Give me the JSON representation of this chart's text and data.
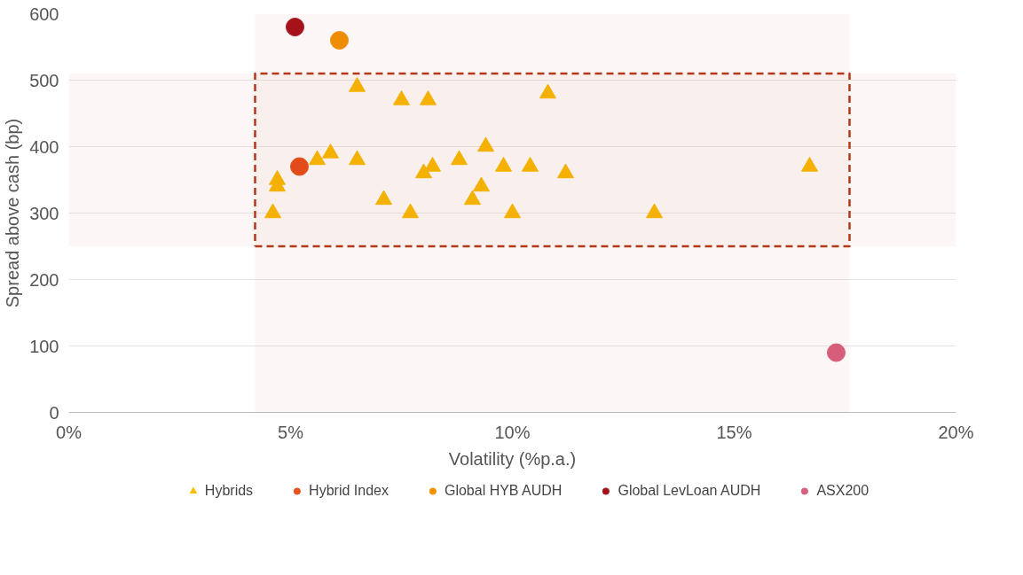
{
  "chart_data": {
    "type": "scatter",
    "xlabel": "Volatility (%p.a.)",
    "ylabel": "Spread above cash (bp)",
    "xlim": [
      0,
      20
    ],
    "xticks": [
      {
        "value": 0,
        "label": "0%"
      },
      {
        "value": 5,
        "label": "5%"
      },
      {
        "value": 10,
        "label": "10%"
      },
      {
        "value": 15,
        "label": "15%"
      },
      {
        "value": 20,
        "label": "20%"
      }
    ],
    "ylim": [
      0,
      600
    ],
    "yticks": [
      0,
      100,
      200,
      300,
      400,
      500,
      600
    ],
    "grid": "y",
    "legend": "bottom",
    "bands": [
      {
        "axis": "x",
        "from": 4.2,
        "to": 17.6,
        "color": "#b5391a"
      },
      {
        "axis": "y",
        "from": 250,
        "to": 510,
        "color": "#b5391a"
      }
    ],
    "series": [
      {
        "name": "Hybrids",
        "color": "#fbbd00",
        "marker": "triangle",
        "x": [
          4.6,
          4.7,
          4.7,
          5.6,
          5.9,
          6.5,
          6.5,
          7.1,
          7.5,
          7.7,
          8.1,
          8.0,
          8.2,
          8.8,
          9.1,
          9.3,
          9.4,
          9.8,
          10.0,
          10.4,
          10.8,
          11.2,
          13.2,
          16.7
        ],
        "values": [
          300,
          340,
          350,
          380,
          390,
          490,
          380,
          320,
          470,
          300,
          470,
          360,
          370,
          380,
          320,
          340,
          400,
          370,
          300,
          370,
          480,
          360,
          300,
          370
        ]
      },
      {
        "name": "Hybrid Index",
        "color": "#e8501c",
        "marker": "circle",
        "x": [
          5.2
        ],
        "values": [
          370
        ]
      },
      {
        "name": "Global HYB AUDH",
        "color": "#f29100",
        "marker": "circle",
        "x": [
          6.1
        ],
        "values": [
          560
        ]
      },
      {
        "name": "Global LevLoan AUDH",
        "color": "#a5111b",
        "marker": "circle",
        "x": [
          5.1
        ],
        "values": [
          580
        ]
      },
      {
        "name": "ASX200",
        "color": "#d8607f",
        "marker": "circle",
        "x": [
          17.3
        ],
        "values": [
          90
        ]
      }
    ]
  }
}
